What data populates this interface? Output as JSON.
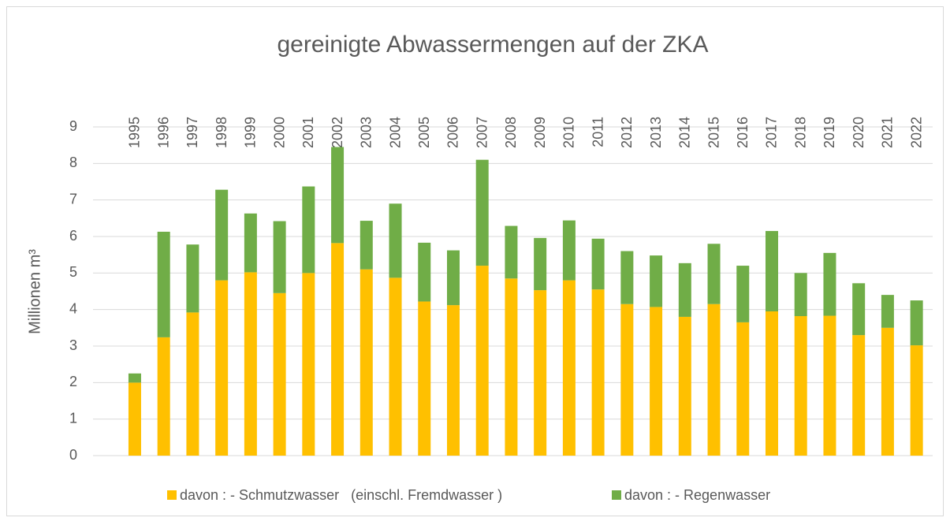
{
  "chart_data": {
    "type": "stacked_bar",
    "title": "gereinigte Abwassermengen auf der ZKA",
    "y_label": "Millionen m³",
    "categories": [
      "1995",
      "1996",
      "1997",
      "1998",
      "1999",
      "2000",
      "2001",
      "2002",
      "2003",
      "2004",
      "2005",
      "2006",
      "2007",
      "2008",
      "2009",
      "2010",
      "2011",
      "2012",
      "2013",
      "2014",
      "2015",
      "2016",
      "2017",
      "2018",
      "2019",
      "2020",
      "2021",
      "2022"
    ],
    "series": [
      {
        "name": "davon : - Schmutzwasser   (einschl. Fremdwasser )",
        "color": "#ffc000",
        "values": [
          2.0,
          3.24,
          3.92,
          4.8,
          5.02,
          4.45,
          5.0,
          5.82,
          5.1,
          4.87,
          4.22,
          4.12,
          5.2,
          4.85,
          4.53,
          4.8,
          4.55,
          4.15,
          4.07,
          3.8,
          4.15,
          3.65,
          3.95,
          3.82,
          3.83,
          3.3,
          3.5,
          3.02
        ]
      },
      {
        "name": "davon : - Regenwasser",
        "color": "#70ad47",
        "values": [
          0.25,
          2.89,
          1.86,
          2.48,
          1.61,
          1.97,
          2.37,
          2.63,
          1.33,
          2.03,
          1.61,
          1.5,
          2.9,
          1.44,
          1.43,
          1.64,
          1.39,
          1.45,
          1.41,
          1.47,
          1.65,
          1.55,
          2.2,
          1.18,
          1.72,
          1.42,
          0.9,
          1.23
        ]
      }
    ],
    "ylim": [
      0,
      9
    ],
    "yticks": [
      0,
      1,
      2,
      3,
      4,
      5,
      6,
      7,
      8,
      9
    ],
    "grid": true,
    "legend": "bottom"
  }
}
